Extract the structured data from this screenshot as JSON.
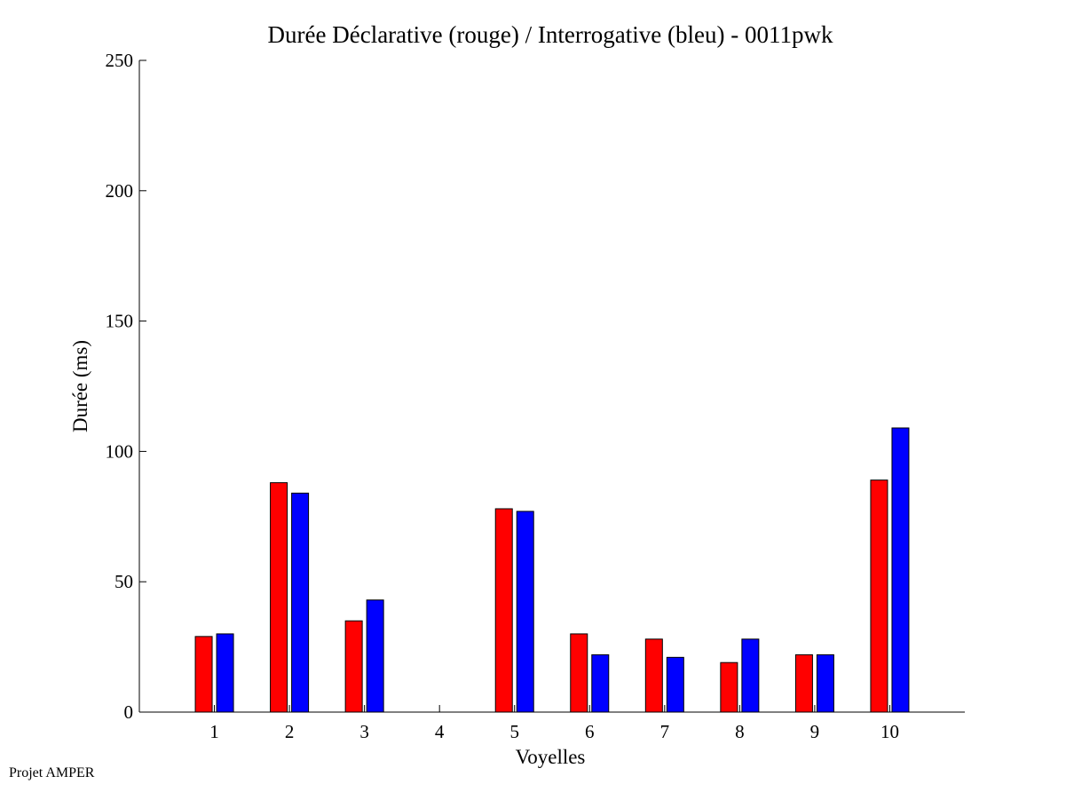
{
  "chart_data": {
    "type": "bar",
    "title": "Durée Déclarative (rouge) / Interrogative (bleu) - 0011pwk",
    "xlabel": "Voyelles",
    "ylabel": "Durée (ms)",
    "ylim": [
      0,
      250
    ],
    "yticks": [
      0,
      50,
      100,
      150,
      200,
      250
    ],
    "xlim": [
      0,
      11
    ],
    "categories": [
      "1",
      "2",
      "3",
      "4",
      "5",
      "6",
      "7",
      "8",
      "9",
      "10"
    ],
    "series": [
      {
        "color": "#ff0000",
        "values": [
          29,
          88,
          35,
          0,
          78,
          30,
          28,
          19,
          22,
          89
        ]
      },
      {
        "color": "#0000ff",
        "values": [
          30,
          84,
          43,
          0,
          77,
          22,
          21,
          28,
          22,
          109
        ]
      }
    ],
    "grid": false,
    "legend": "none"
  },
  "footer": {
    "text": "Projet AMPER"
  }
}
